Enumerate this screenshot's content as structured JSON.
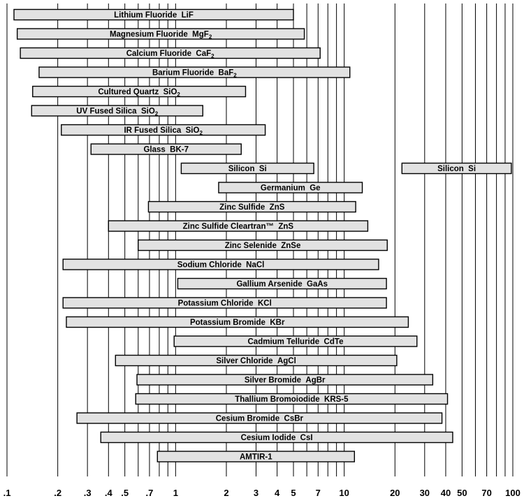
{
  "chart_data": {
    "type": "bar",
    "orientation": "horizontal-range",
    "x_scale": "log",
    "xlim": [
      0.1,
      100
    ],
    "grid": true,
    "xticks": [
      {
        "value": 0.1,
        "label": ".1"
      },
      {
        "value": 0.2,
        "label": ".2"
      },
      {
        "value": 0.3,
        "label": ".3"
      },
      {
        "value": 0.4,
        "label": ".4"
      },
      {
        "value": 0.5,
        "label": ".5"
      },
      {
        "value": 0.7,
        "label": ".7"
      },
      {
        "value": 1,
        "label": "1"
      },
      {
        "value": 2,
        "label": "2"
      },
      {
        "value": 3,
        "label": "3"
      },
      {
        "value": 4,
        "label": "4"
      },
      {
        "value": 5,
        "label": "5"
      },
      {
        "value": 7,
        "label": "7"
      },
      {
        "value": 10,
        "label": "10"
      },
      {
        "value": 20,
        "label": "20"
      },
      {
        "value": 30,
        "label": "30"
      },
      {
        "value": 40,
        "label": "40"
      },
      {
        "value": 50,
        "label": "50"
      },
      {
        "value": 70,
        "label": "70"
      },
      {
        "value": 100,
        "label": "100"
      }
    ],
    "gridlines": [
      0.1,
      0.2,
      0.3,
      0.4,
      0.5,
      0.6,
      0.7,
      0.8,
      0.9,
      1,
      2,
      3,
      4,
      5,
      6,
      7,
      8,
      9,
      10,
      20,
      30,
      40,
      50,
      60,
      70,
      80,
      90,
      100
    ],
    "bars": [
      {
        "row": 0,
        "name": "Lithium Fluoride",
        "formula": "LiF",
        "sub": "",
        "start": 0.11,
        "end": 5.0
      },
      {
        "row": 1,
        "name": "Magnesium Fluoride",
        "formula": "MgF",
        "sub": "2",
        "start": 0.115,
        "end": 5.8
      },
      {
        "row": 2,
        "name": "Calcium Fluoride",
        "formula": "CaF",
        "sub": "2",
        "start": 0.12,
        "end": 7.2
      },
      {
        "row": 3,
        "name": "Barium Fluoride",
        "formula": "BaF",
        "sub": "2",
        "start": 0.155,
        "end": 10.8
      },
      {
        "row": 4,
        "name": "Cultured Quartz",
        "formula": "SiO",
        "sub": "2",
        "start": 0.142,
        "end": 2.6
      },
      {
        "row": 5,
        "name": "UV Fused Silica",
        "formula": "SiO",
        "sub": "2",
        "start": 0.14,
        "end": 1.45
      },
      {
        "row": 6,
        "name": "IR Fused Silica",
        "formula": "SiO",
        "sub": "2",
        "start": 0.21,
        "end": 3.4
      },
      {
        "row": 7,
        "name": "Glass",
        "formula": "BK-7",
        "sub": "",
        "start": 0.315,
        "end": 2.45
      },
      {
        "row": 8,
        "name": "Silicon",
        "formula": "Si",
        "sub": "",
        "start": 1.08,
        "end": 6.6
      },
      {
        "row": 8,
        "name": "Silicon",
        "formula": "Si",
        "sub": "",
        "start": 22,
        "end": 98
      },
      {
        "row": 9,
        "name": "Germanium",
        "formula": "Ge",
        "sub": "",
        "start": 1.8,
        "end": 12.8
      },
      {
        "row": 10,
        "name": "Zinc Sulfide",
        "formula": "ZnS",
        "sub": "",
        "start": 0.69,
        "end": 11.7
      },
      {
        "row": 11,
        "name": "Zinc Sulfide Cleartran™",
        "formula": "ZnS",
        "sub": "",
        "start": 0.4,
        "end": 13.8
      },
      {
        "row": 12,
        "name": "Zinc Selenide",
        "formula": "ZnSe",
        "sub": "",
        "start": 0.6,
        "end": 18.0
      },
      {
        "row": 13,
        "name": "Sodium Chloride",
        "formula": "NaCl",
        "sub": "",
        "start": 0.215,
        "end": 16.0
      },
      {
        "row": 14,
        "name": "Gallium Arsenide",
        "formula": "GaAs",
        "sub": "",
        "start": 1.03,
        "end": 17.8
      },
      {
        "row": 15,
        "name": "Potassium Chloride",
        "formula": "KCl",
        "sub": "",
        "start": 0.215,
        "end": 17.8
      },
      {
        "row": 16,
        "name": "Potassium Bromide",
        "formula": "KBr",
        "sub": "",
        "start": 0.225,
        "end": 24.0
      },
      {
        "row": 17,
        "name": "Cadmium Telluride",
        "formula": "CdTe",
        "sub": "",
        "start": 0.98,
        "end": 27.0
      },
      {
        "row": 18,
        "name": "Silver Chloride",
        "formula": "AgCl",
        "sub": "",
        "start": 0.44,
        "end": 20.5
      },
      {
        "row": 19,
        "name": "Silver Bromide",
        "formula": "AgBr",
        "sub": "",
        "start": 0.59,
        "end": 33.5
      },
      {
        "row": 20,
        "name": "Thallium Bromoiodide",
        "formula": "KRS-5",
        "sub": "",
        "start": 0.58,
        "end": 41.0
      },
      {
        "row": 21,
        "name": "Cesium Bromide",
        "formula": "CsBr",
        "sub": "",
        "start": 0.26,
        "end": 38.0
      },
      {
        "row": 22,
        "name": "Cesium Iodide",
        "formula": "CsI",
        "sub": "",
        "start": 0.36,
        "end": 44.0
      },
      {
        "row": 23,
        "name": "AMTIR-1",
        "formula": "",
        "sub": "",
        "start": 0.78,
        "end": 11.5
      }
    ]
  }
}
